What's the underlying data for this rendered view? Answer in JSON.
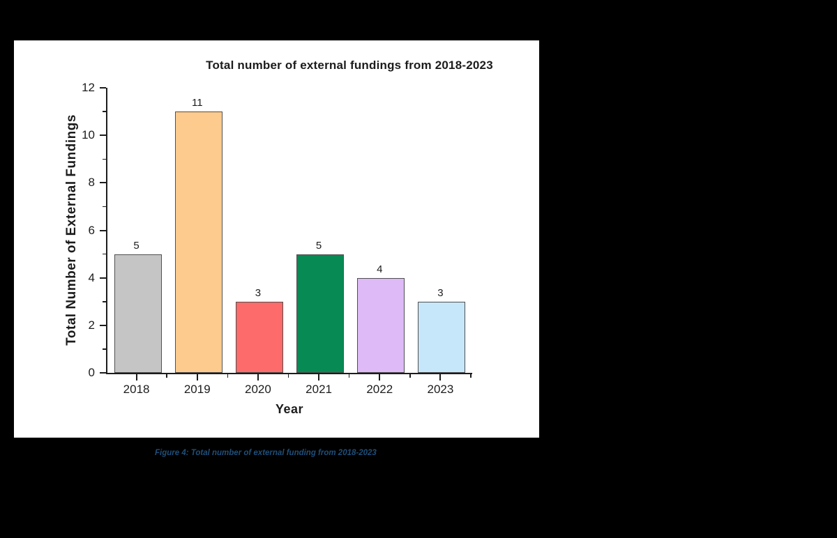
{
  "window": {
    "background_color": "#000000",
    "panel_background_color": "#ffffff"
  },
  "chart_data": {
    "type": "bar",
    "title": "Total number of external fundings from 2018-2023",
    "xlabel": "Year",
    "ylabel": "Total Number of External Fundings",
    "categories": [
      "2018",
      "2019",
      "2020",
      "2021",
      "2022",
      "2023"
    ],
    "values": [
      5,
      11,
      3,
      5,
      4,
      3
    ],
    "value_labels": [
      "5",
      "11",
      "3",
      "5",
      "4",
      "3"
    ],
    "bar_colors": [
      "#c5c5c5",
      "#fdcb8d",
      "#fd6b6a",
      "#088a54",
      "#debaf7",
      "#c5e7f9"
    ],
    "bar_border_color": "#4f4f4f",
    "ylim": [
      0,
      12
    ],
    "y_major_ticks": [
      0,
      2,
      4,
      6,
      8,
      10,
      12
    ],
    "y_minor_ticks": [
      1,
      3,
      5,
      7,
      9,
      11
    ],
    "grid": false,
    "legend": "none",
    "axis_color": "#1c1c1c"
  },
  "caption": {
    "text": "Figure 4: Total number of external funding from 2018-2023",
    "color": "#1f4e79"
  }
}
